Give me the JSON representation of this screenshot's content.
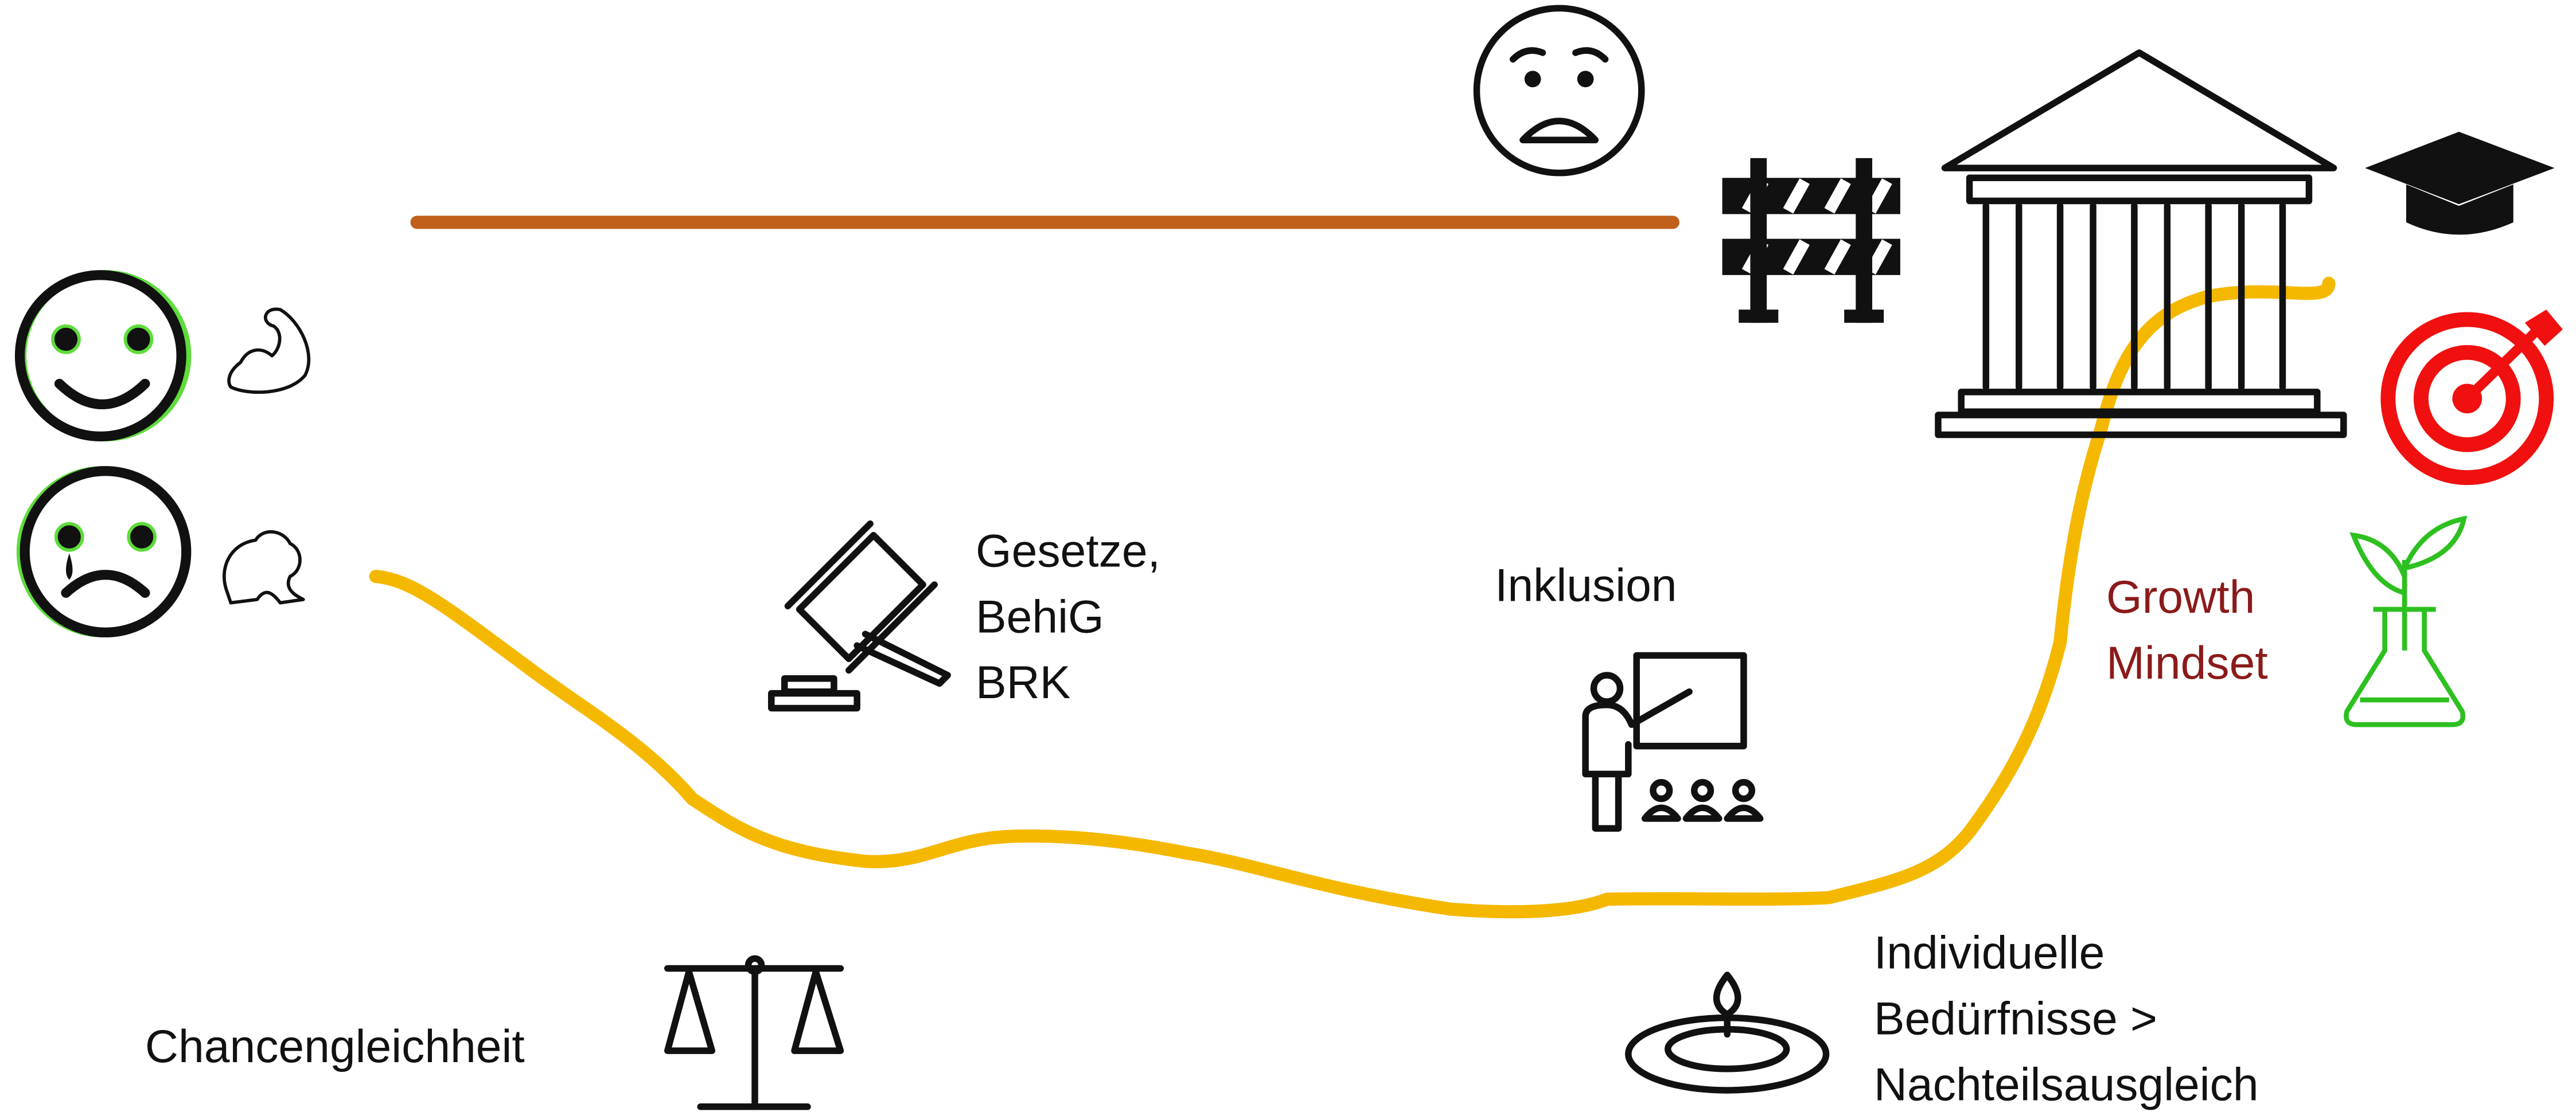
{
  "labels": {
    "gesetze": [
      "Gesetze,",
      "BehiG",
      "BRK"
    ],
    "inklusion": [
      "Inklusion"
    ],
    "growth": [
      "Growth",
      "Mindset"
    ],
    "chancen": [
      "Chancengleichheit"
    ],
    "individuell": [
      "Individuelle",
      "Bedürfnisse >",
      "Nachteilsausgleich"
    ]
  }
}
